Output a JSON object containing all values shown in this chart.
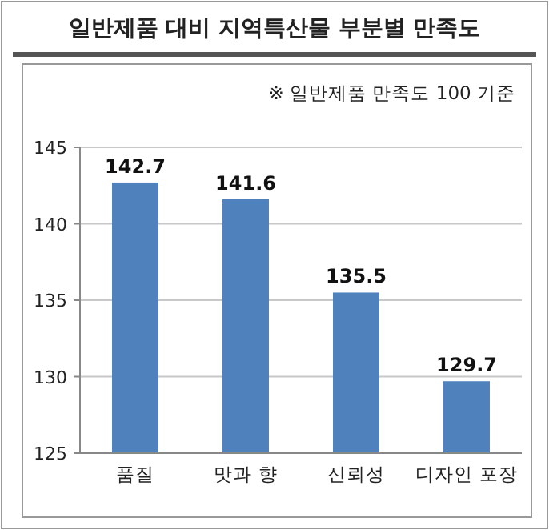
{
  "chart_data": {
    "type": "bar",
    "title": "일반제품 대비 지역특산물 부분별 만족도",
    "subtitle": "※ 일반제품 만족도 100 기준",
    "categories": [
      "품질",
      "맛과 향",
      "신뢰성",
      "디자인 포장"
    ],
    "values": [
      142.7,
      141.6,
      135.5,
      129.7
    ],
    "color": "#4f81bd",
    "ylim": [
      125,
      145
    ],
    "yticks": [
      125,
      130,
      135,
      140,
      145
    ],
    "grid": "y",
    "data_labels": true
  }
}
